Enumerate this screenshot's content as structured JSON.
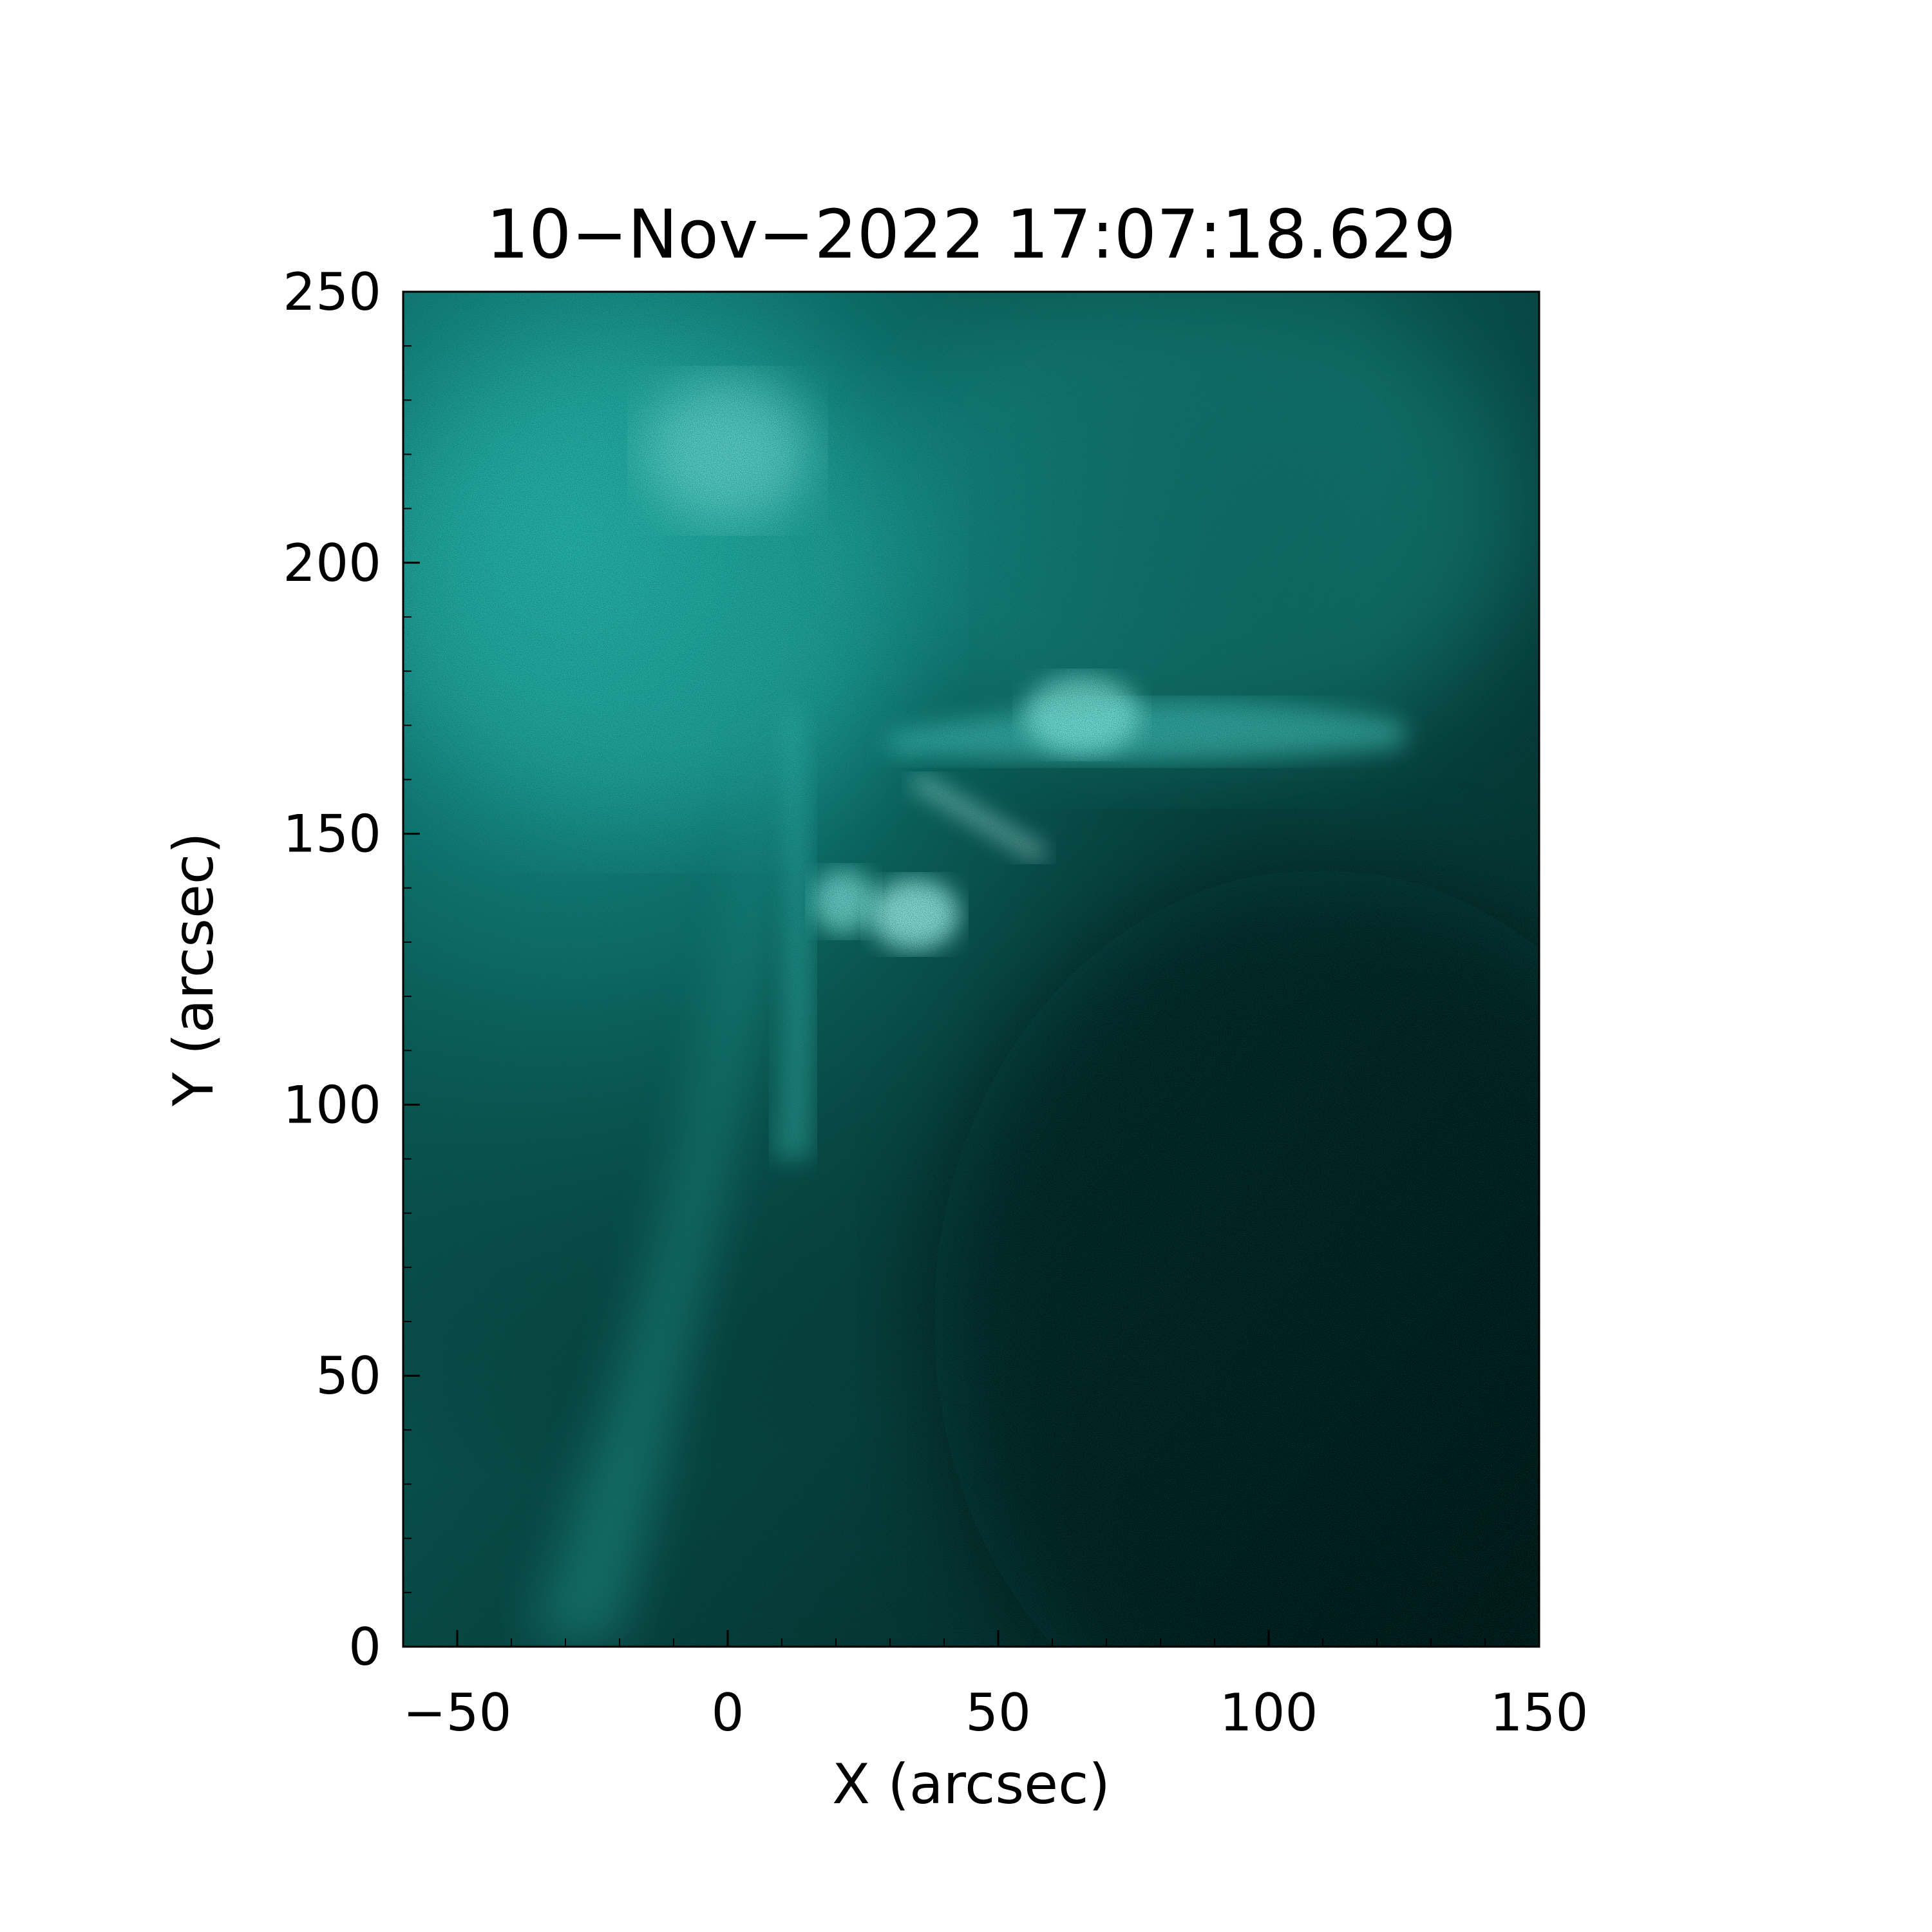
{
  "title": "10−Nov−2022 17:07:18.629",
  "image": {
    "type": "solar EUV map",
    "colormap": [
      "#001210",
      "#0b6f6a",
      "#1fb3aa",
      "#9ef4ec"
    ],
    "x_range": [
      -60,
      150
    ],
    "y_range": [
      0,
      250
    ]
  },
  "x_axis": {
    "label": "X (arcsec)",
    "ticks": [
      -50,
      0,
      50,
      100,
      150
    ],
    "tick_labels": [
      "−50",
      "0",
      "50",
      "100",
      "150"
    ]
  },
  "y_axis": {
    "label": "Y (arcsec)",
    "ticks": [
      0,
      50,
      100,
      150,
      200,
      250
    ],
    "tick_labels": [
      "0",
      "50",
      "100",
      "150",
      "200",
      "250"
    ]
  }
}
